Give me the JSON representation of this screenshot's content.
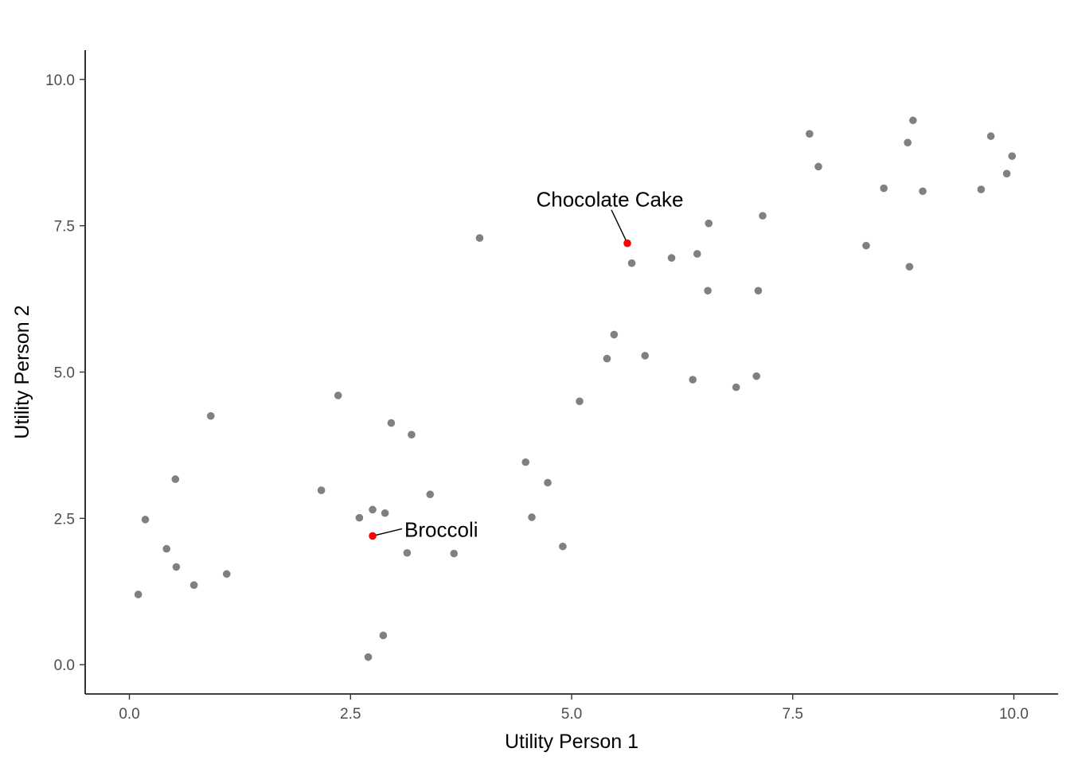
{
  "chart_data": {
    "type": "scatter",
    "title": "",
    "xlabel": "Utility Person 1",
    "ylabel": "Utility Person 2",
    "xlim": [
      -0.5,
      10.5
    ],
    "ylim": [
      -0.5,
      10.5
    ],
    "x_ticks": [
      0.0,
      2.5,
      5.0,
      7.5,
      10.0
    ],
    "y_ticks": [
      0.0,
      2.5,
      5.0,
      7.5,
      10.0
    ],
    "x_tick_labels": [
      "0.0",
      "2.5",
      "5.0",
      "7.5",
      "10.0"
    ],
    "y_tick_labels": [
      "0.0",
      "2.5",
      "5.0",
      "7.5",
      "10.0"
    ],
    "grid": false,
    "point_color": "#808080",
    "highlight_color": "#ff0000",
    "points": [
      [
        0.1,
        1.2
      ],
      [
        0.18,
        2.48
      ],
      [
        0.42,
        1.98
      ],
      [
        0.52,
        3.17
      ],
      [
        0.53,
        1.67
      ],
      [
        0.73,
        1.36
      ],
      [
        0.92,
        4.25
      ],
      [
        1.1,
        1.55
      ],
      [
        2.17,
        2.98
      ],
      [
        2.36,
        4.6
      ],
      [
        2.6,
        2.51
      ],
      [
        2.7,
        0.13
      ],
      [
        2.75,
        2.65
      ],
      [
        2.87,
        0.5
      ],
      [
        2.89,
        2.59
      ],
      [
        2.96,
        4.13
      ],
      [
        3.14,
        1.91
      ],
      [
        3.19,
        3.93
      ],
      [
        3.4,
        2.91
      ],
      [
        3.67,
        1.9
      ],
      [
        3.96,
        7.29
      ],
      [
        4.48,
        3.46
      ],
      [
        4.55,
        2.52
      ],
      [
        4.73,
        3.11
      ],
      [
        4.9,
        2.02
      ],
      [
        5.09,
        4.5
      ],
      [
        5.4,
        5.23
      ],
      [
        5.48,
        5.64
      ],
      [
        5.68,
        6.86
      ],
      [
        5.83,
        5.28
      ],
      [
        6.13,
        6.95
      ],
      [
        6.37,
        4.87
      ],
      [
        6.42,
        7.02
      ],
      [
        6.54,
        6.39
      ],
      [
        6.55,
        7.54
      ],
      [
        6.86,
        4.74
      ],
      [
        7.09,
        4.93
      ],
      [
        7.11,
        6.39
      ],
      [
        7.16,
        7.67
      ],
      [
        7.69,
        9.07
      ],
      [
        7.79,
        8.51
      ],
      [
        8.33,
        7.16
      ],
      [
        8.53,
        8.14
      ],
      [
        8.8,
        8.92
      ],
      [
        8.82,
        6.8
      ],
      [
        8.86,
        9.3
      ],
      [
        8.97,
        8.09
      ],
      [
        9.63,
        8.12
      ],
      [
        9.74,
        9.03
      ],
      [
        9.92,
        8.39
      ],
      [
        9.98,
        8.69
      ]
    ],
    "highlighted": [
      {
        "label": "Chocolate Cake",
        "x": 5.63,
        "y": 7.2
      },
      {
        "label": "Broccoli",
        "x": 2.75,
        "y": 2.2
      }
    ]
  }
}
